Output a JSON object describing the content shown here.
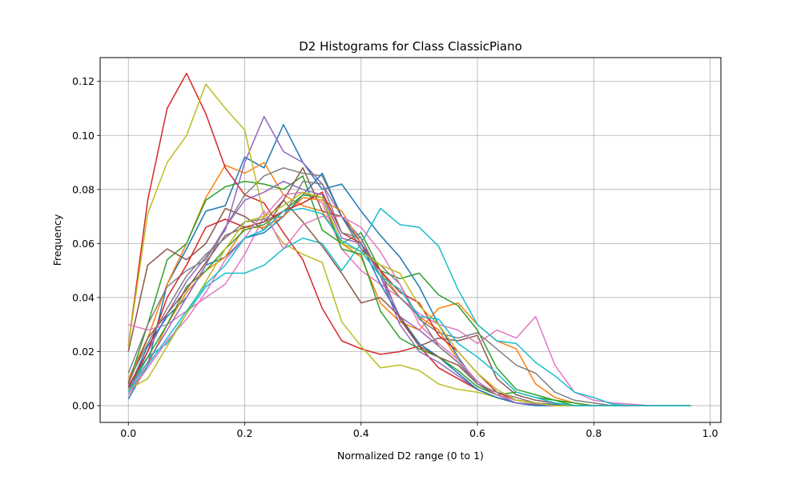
{
  "chart_data": {
    "type": "line",
    "title": "D2 Histograms for Class ClassicPiano",
    "xlabel": "Normalized D2 range (0 to 1)",
    "ylabel": "Frequency",
    "xlim": [
      -0.0485,
      1.0185
    ],
    "ylim": [
      -0.0062,
      0.1288
    ],
    "xticks": [
      "0.0",
      "0.2",
      "0.4",
      "0.6",
      "0.8",
      "1.0"
    ],
    "xtick_values": [
      0,
      0.2,
      0.4,
      0.6,
      0.8,
      1.0
    ],
    "yticks": [
      "0.00",
      "0.02",
      "0.04",
      "0.06",
      "0.08",
      "0.10",
      "0.12"
    ],
    "ytick_values": [
      0,
      0.02,
      0.04,
      0.06,
      0.08,
      0.1,
      0.12
    ],
    "grid": true,
    "x": [
      0,
      0.0333,
      0.0667,
      0.1,
      0.1333,
      0.1667,
      0.2,
      0.2333,
      0.2667,
      0.3,
      0.3333,
      0.3667,
      0.4,
      0.4333,
      0.4667,
      0.5,
      0.5333,
      0.5667,
      0.6,
      0.6333,
      0.6667,
      0.7,
      0.7333,
      0.7667,
      0.8,
      0.8333,
      0.8667,
      0.9,
      0.9333,
      0.9667
    ],
    "series": [
      {
        "color": "#1f77b4",
        "values": [
          0.0025,
          0.015,
          0.045,
          0.058,
          0.072,
          0.074,
          0.092,
          0.088,
          0.104,
          0.09,
          0.08,
          0.082,
          0.072,
          0.063,
          0.055,
          0.044,
          0.03,
          0.018,
          0.008,
          0.004,
          0.002,
          0.001,
          0.0005,
          0,
          0,
          0,
          0,
          0,
          0,
          0
        ]
      },
      {
        "color": "#ff7f0e",
        "values": [
          0.01,
          0.025,
          0.045,
          0.06,
          0.077,
          0.089,
          0.086,
          0.09,
          0.078,
          0.074,
          0.072,
          0.06,
          0.055,
          0.038,
          0.031,
          0.028,
          0.036,
          0.038,
          0.03,
          0.024,
          0.021,
          0.008,
          0.003,
          0.001,
          0,
          0,
          0,
          0,
          0,
          0
        ]
      },
      {
        "color": "#2ca02c",
        "values": [
          0.008,
          0.03,
          0.054,
          0.06,
          0.076,
          0.081,
          0.083,
          0.082,
          0.08,
          0.085,
          0.065,
          0.06,
          0.064,
          0.05,
          0.047,
          0.049,
          0.041,
          0.037,
          0.028,
          0.014,
          0.006,
          0.004,
          0.002,
          0.001,
          0,
          0,
          0,
          0,
          0,
          0
        ]
      },
      {
        "color": "#d62728",
        "values": [
          0.022,
          0.076,
          0.11,
          0.123,
          0.108,
          0.088,
          0.078,
          0.075,
          0.064,
          0.054,
          0.036,
          0.024,
          0.021,
          0.019,
          0.02,
          0.022,
          0.014,
          0.01,
          0.006,
          0.003,
          0.001,
          0.0005,
          0,
          0,
          0,
          0,
          0,
          0,
          0,
          0
        ]
      },
      {
        "color": "#9467bd",
        "values": [
          0.005,
          0.02,
          0.034,
          0.046,
          0.055,
          0.065,
          0.09,
          0.107,
          0.094,
          0.09,
          0.082,
          0.07,
          0.062,
          0.048,
          0.03,
          0.02,
          0.016,
          0.011,
          0.006,
          0.003,
          0.001,
          0.0005,
          0,
          0,
          0,
          0,
          0,
          0,
          0,
          0
        ]
      },
      {
        "color": "#8c564b",
        "values": [
          0.02,
          0.052,
          0.058,
          0.054,
          0.06,
          0.073,
          0.07,
          0.065,
          0.076,
          0.088,
          0.072,
          0.07,
          0.058,
          0.05,
          0.032,
          0.022,
          0.025,
          0.024,
          0.026,
          0.01,
          0.004,
          0.002,
          0.001,
          0,
          0,
          0,
          0,
          0,
          0,
          0
        ]
      },
      {
        "color": "#e377c2",
        "values": [
          0.03,
          0.028,
          0.03,
          0.035,
          0.04,
          0.045,
          0.056,
          0.07,
          0.078,
          0.079,
          0.075,
          0.058,
          0.05,
          0.045,
          0.04,
          0.034,
          0.03,
          0.028,
          0.023,
          0.028,
          0.025,
          0.033,
          0.015,
          0.005,
          0.002,
          0.001,
          0.0005,
          0,
          0,
          0
        ]
      },
      {
        "color": "#7f7f7f",
        "values": [
          0.012,
          0.03,
          0.044,
          0.05,
          0.054,
          0.066,
          0.078,
          0.085,
          0.088,
          0.086,
          0.085,
          0.07,
          0.058,
          0.052,
          0.045,
          0.032,
          0.027,
          0.025,
          0.027,
          0.021,
          0.015,
          0.012,
          0.005,
          0.002,
          0.001,
          0,
          0,
          0,
          0,
          0
        ]
      },
      {
        "color": "#bcbd22",
        "values": [
          0.022,
          0.071,
          0.09,
          0.1,
          0.119,
          0.11,
          0.102,
          0.07,
          0.06,
          0.056,
          0.053,
          0.031,
          0.022,
          0.014,
          0.015,
          0.013,
          0.008,
          0.006,
          0.005,
          0.003,
          0.001,
          0.0005,
          0,
          0,
          0,
          0,
          0,
          0,
          0,
          0
        ]
      },
      {
        "color": "#17becf",
        "values": [
          0.005,
          0.018,
          0.023,
          0.034,
          0.044,
          0.049,
          0.049,
          0.052,
          0.058,
          0.062,
          0.06,
          0.05,
          0.06,
          0.073,
          0.067,
          0.066,
          0.059,
          0.043,
          0.03,
          0.024,
          0.023,
          0.016,
          0.011,
          0.005,
          0.003,
          0.0005,
          0,
          0,
          0,
          0
        ]
      },
      {
        "color": "#1f77b4",
        "values": [
          0.006,
          0.022,
          0.033,
          0.04,
          0.052,
          0.055,
          0.062,
          0.064,
          0.07,
          0.078,
          0.086,
          0.07,
          0.06,
          0.045,
          0.033,
          0.023,
          0.018,
          0.012,
          0.006,
          0.003,
          0.001,
          0,
          0,
          0,
          0,
          0,
          0,
          0,
          0,
          0
        ]
      },
      {
        "color": "#ff7f0e",
        "values": [
          0.004,
          0.015,
          0.03,
          0.042,
          0.05,
          0.055,
          0.066,
          0.066,
          0.07,
          0.077,
          0.076,
          0.072,
          0.06,
          0.05,
          0.04,
          0.033,
          0.028,
          0.017,
          0.009,
          0.004,
          0.002,
          0.001,
          0,
          0,
          0,
          0,
          0,
          0,
          0,
          0
        ]
      },
      {
        "color": "#2ca02c",
        "values": [
          0.007,
          0.018,
          0.03,
          0.044,
          0.05,
          0.058,
          0.065,
          0.067,
          0.072,
          0.078,
          0.077,
          0.058,
          0.056,
          0.035,
          0.025,
          0.021,
          0.018,
          0.013,
          0.007,
          0.004,
          0.005,
          0.003,
          0.002,
          0,
          0,
          0,
          0,
          0,
          0,
          0
        ]
      },
      {
        "color": "#d62728",
        "values": [
          0.007,
          0.02,
          0.04,
          0.052,
          0.066,
          0.069,
          0.066,
          0.068,
          0.072,
          0.075,
          0.079,
          0.064,
          0.06,
          0.05,
          0.042,
          0.038,
          0.026,
          0.02,
          0.012,
          0.005,
          0.002,
          0.001,
          0,
          0,
          0,
          0,
          0,
          0,
          0,
          0
        ]
      },
      {
        "color": "#9467bd",
        "values": [
          0.006,
          0.016,
          0.028,
          0.04,
          0.052,
          0.066,
          0.076,
          0.079,
          0.083,
          0.08,
          0.078,
          0.062,
          0.06,
          0.048,
          0.033,
          0.028,
          0.022,
          0.016,
          0.009,
          0.004,
          0.001,
          0.0005,
          0,
          0,
          0,
          0,
          0,
          0,
          0,
          0
        ]
      },
      {
        "color": "#8c564b",
        "values": [
          0.008,
          0.025,
          0.034,
          0.043,
          0.053,
          0.063,
          0.066,
          0.068,
          0.076,
          0.068,
          0.059,
          0.049,
          0.038,
          0.04,
          0.033,
          0.022,
          0.018,
          0.015,
          0.008,
          0.004,
          0.002,
          0.001,
          0,
          0,
          0,
          0,
          0,
          0,
          0,
          0
        ]
      },
      {
        "color": "#e377c2",
        "values": [
          0.004,
          0.014,
          0.024,
          0.032,
          0.042,
          0.054,
          0.062,
          0.072,
          0.058,
          0.067,
          0.07,
          0.07,
          0.066,
          0.057,
          0.045,
          0.03,
          0.023,
          0.017,
          0.009,
          0.004,
          0.002,
          0.001,
          0,
          0,
          0,
          0,
          0,
          0,
          0,
          0
        ]
      },
      {
        "color": "#7f7f7f",
        "values": [
          0.009,
          0.023,
          0.036,
          0.048,
          0.056,
          0.062,
          0.068,
          0.069,
          0.07,
          0.083,
          0.082,
          0.064,
          0.062,
          0.048,
          0.04,
          0.033,
          0.022,
          0.016,
          0.008,
          0.005,
          0.003,
          0.001,
          0,
          0,
          0,
          0,
          0,
          0,
          0,
          0
        ]
      },
      {
        "color": "#bcbd22",
        "values": [
          0.006,
          0.01,
          0.022,
          0.034,
          0.046,
          0.058,
          0.068,
          0.07,
          0.074,
          0.079,
          0.077,
          0.06,
          0.057,
          0.052,
          0.049,
          0.037,
          0.03,
          0.02,
          0.012,
          0.006,
          0.002,
          0.001,
          0,
          0,
          0,
          0,
          0,
          0,
          0,
          0
        ]
      },
      {
        "color": "#17becf",
        "values": [
          0.005,
          0.015,
          0.025,
          0.035,
          0.045,
          0.052,
          0.062,
          0.065,
          0.072,
          0.073,
          0.071,
          0.061,
          0.057,
          0.048,
          0.043,
          0.033,
          0.032,
          0.023,
          0.018,
          0.012,
          0.005,
          0.003,
          0.001,
          0,
          0,
          0,
          0,
          0,
          0,
          0
        ]
      }
    ]
  }
}
